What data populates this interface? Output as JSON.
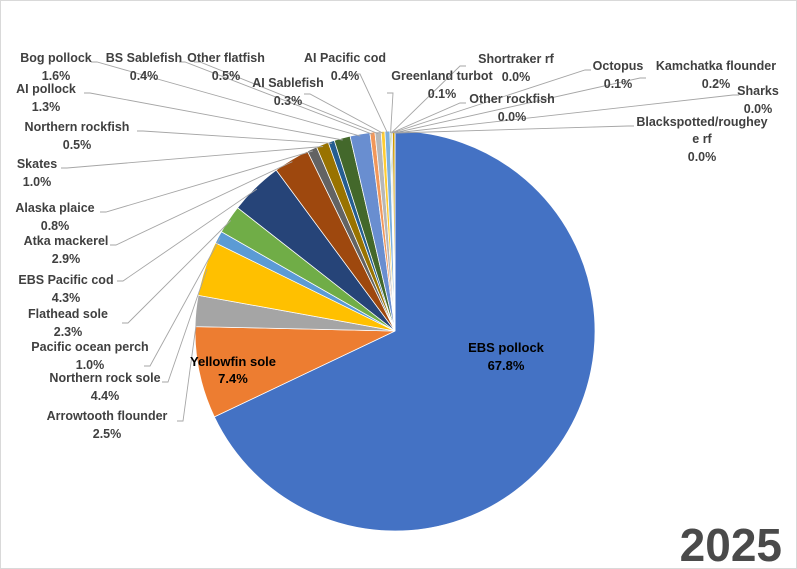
{
  "chart_data": {
    "type": "pie",
    "title": "2025",
    "colors": {
      "EBS pollock": "#4472C4",
      "Yellowfin sole": "#ED7D31",
      "Arrowtooth flounder": "#A5A5A5",
      "Northern rock sole": "#FFC000",
      "Pacific ocean perch": "#5B9BD5",
      "Flathead sole": "#70AD47",
      "EBS Pacific cod": "#264478",
      "Atka mackerel": "#9E480E",
      "Alaska plaice": "#636363",
      "Skates": "#997300",
      "Northern rockfish": "#255E91",
      "AI pollock": "#43682B",
      "Bog pollock": "#698ED0",
      "BS Sablefish": "#F1975A",
      "Other flatfish": "#B7B7B7",
      "AI Sablefish": "#FFCD33",
      "AI Pacific cod": "#7CAFDD",
      "Greenland turbot": "#8CC168",
      "Shortraker rf": "#335AA1",
      "Other rockfish": "#C55A11",
      "Octopus": "#848484",
      "Kamchatka flounder": "#CC9A00",
      "Sharks": "#2F75B5",
      "Blackspotted/rougheye rf": "#548235"
    },
    "slices": [
      {
        "name": "EBS pollock",
        "value": 67.8,
        "label": "67.8%"
      },
      {
        "name": "Yellowfin sole",
        "value": 7.4,
        "label": "7.4%"
      },
      {
        "name": "Arrowtooth flounder",
        "value": 2.5,
        "label": "2.5%"
      },
      {
        "name": "Northern rock sole",
        "value": 4.4,
        "label": "4.4%"
      },
      {
        "name": "Pacific ocean perch",
        "value": 1.0,
        "label": "1.0%"
      },
      {
        "name": "Flathead sole",
        "value": 2.3,
        "label": "2.3%"
      },
      {
        "name": "EBS Pacific cod",
        "value": 4.3,
        "label": "4.3%"
      },
      {
        "name": "Atka mackerel",
        "value": 2.9,
        "label": "2.9%"
      },
      {
        "name": "Alaska plaice",
        "value": 0.8,
        "label": "0.8%"
      },
      {
        "name": "Skates",
        "value": 1.0,
        "label": "1.0%"
      },
      {
        "name": "Northern rockfish",
        "value": 0.5,
        "label": "0.5%"
      },
      {
        "name": "AI pollock",
        "value": 1.3,
        "label": "1.3%"
      },
      {
        "name": "Bog pollock",
        "value": 1.6,
        "label": "1.6%"
      },
      {
        "name": "BS Sablefish",
        "value": 0.4,
        "label": "0.4%"
      },
      {
        "name": "Other flatfish",
        "value": 0.5,
        "label": "0.5%"
      },
      {
        "name": "AI Sablefish",
        "value": 0.3,
        "label": "0.3%"
      },
      {
        "name": "AI Pacific cod",
        "value": 0.4,
        "label": "0.4%"
      },
      {
        "name": "Greenland turbot",
        "value": 0.1,
        "label": "0.1%"
      },
      {
        "name": "Shortraker rf",
        "value": 0.0,
        "label": "0.0%"
      },
      {
        "name": "Other rockfish",
        "value": 0.0,
        "label": "0.0%"
      },
      {
        "name": "Octopus",
        "value": 0.1,
        "label": "0.1%"
      },
      {
        "name": "Kamchatka flounder",
        "value": 0.2,
        "label": "0.2%"
      },
      {
        "name": "Sharks",
        "value": 0.0,
        "label": "0.0%"
      },
      {
        "name": "Blackspotted/rougheye rf",
        "value": 0.0,
        "label": "0.0%"
      }
    ]
  }
}
